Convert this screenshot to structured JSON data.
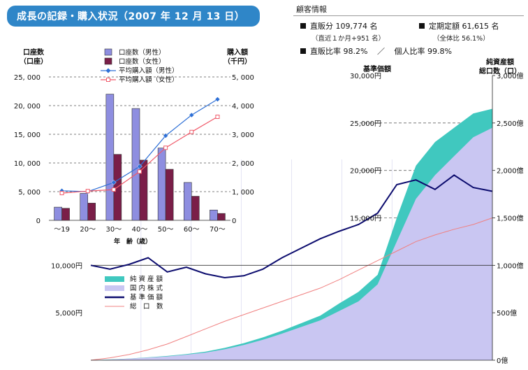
{
  "title": "成長の記録・購入状況（2007 年 12 月 13 日）",
  "customer_info": {
    "heading": "顧客情報",
    "direct_sales": "直販分 109,774 名",
    "direct_sales_sub": "（直近１か月+951 名）",
    "fixed_savings": "定期定額 61,615 名",
    "fixed_savings_sub": "（全体比 56.1%）",
    "direct_ratio": "直販比率 98.2%",
    "separator": "／",
    "individual_ratio": "個人比率 99.8%"
  },
  "colors": {
    "title_bg": "#2f86c8",
    "bar_male": "#8e8ee0",
    "bar_female": "#7a1e48",
    "line_male": "#2d6fd6",
    "line_female": "#f05a6a",
    "net_assets": "#40c8bf",
    "domestic_stocks": "#c9c6f2",
    "nav_line": "#0c0c6e",
    "accounts_line": "#f08080"
  },
  "chart_data": [
    {
      "type": "bar",
      "categories": [
        "～19",
        "20～",
        "30～",
        "40～",
        "50～",
        "60～",
        "70～"
      ],
      "xlabel": "年　齢（歳）",
      "ylabel_left": "口座数\n（口座）",
      "ylabel_right": "購入額\n（千円）",
      "ylim_left": [
        0,
        25000
      ],
      "ylim_right": [
        0,
        5000
      ],
      "yticks_left": [
        "0",
        "5, 000",
        "10, 000",
        "15, 000",
        "20, 000",
        "25, 000"
      ],
      "yticks_right": [
        "0",
        "1, 000",
        "2, 000",
        "3, 000",
        "4, 000",
        "5, 000"
      ],
      "gridlines": true,
      "legend_position": "top",
      "series": [
        {
          "name": "口座数（男性）",
          "kind": "bar",
          "axis": "left",
          "values": [
            2300,
            4700,
            22000,
            19500,
            12600,
            6600,
            1800
          ]
        },
        {
          "name": "口座数（女性）",
          "kind": "bar",
          "axis": "left",
          "values": [
            2100,
            3000,
            11500,
            10500,
            8900,
            4200,
            1200
          ]
        },
        {
          "name": "平均購入額（男性）",
          "kind": "line",
          "axis": "right",
          "values": [
            1030,
            1000,
            1320,
            1880,
            2950,
            3670,
            4220
          ]
        },
        {
          "name": "平均購入額（女性）",
          "kind": "line",
          "axis": "right",
          "values": [
            950,
            1020,
            1070,
            1700,
            2530,
            3080,
            3610
          ]
        }
      ]
    },
    {
      "type": "area",
      "ylabel_left": "基準価額",
      "ylabel_right": "純資産額\n総口数（口）",
      "ylim_left": [
        0,
        30000
      ],
      "ylim_right": [
        0,
        3000
      ],
      "yticks_left": [
        "5,000円",
        "10,000円",
        "15,000円",
        "20,000円",
        "25,000円",
        "30,000円"
      ],
      "yticks_right": [
        "0億",
        "500億",
        "1,000億",
        "1,500億",
        "2,000億",
        "2,500億",
        "3,000億"
      ],
      "reference_line": 10000,
      "legend_position": "bottom-left",
      "legend": [
        "純 資 産 額",
        "国 内 株 式",
        "基 準 価 額",
        "総　口　数"
      ],
      "series": [
        {
          "name": "純 資 産 額",
          "axis": "right",
          "values": [
            0,
            8,
            18,
            30,
            45,
            65,
            90,
            130,
            180,
            240,
            310,
            390,
            470,
            600,
            720,
            900,
            1500,
            2050,
            2300,
            2450,
            2600,
            2650
          ]
        },
        {
          "name": "国 内 株 式",
          "axis": "right",
          "values": [
            0,
            7,
            16,
            27,
            40,
            58,
            80,
            115,
            160,
            215,
            280,
            350,
            420,
            520,
            620,
            800,
            1250,
            1700,
            1950,
            2150,
            2350,
            2450
          ]
        },
        {
          "name": "基 準 価 額",
          "axis": "left",
          "values": [
            10000,
            9600,
            10100,
            10800,
            9300,
            9800,
            9100,
            8700,
            8900,
            9600,
            10800,
            11800,
            12800,
            13600,
            14300,
            15500,
            18500,
            19000,
            18000,
            19500,
            18200,
            17800
          ]
        },
        {
          "name": "総　口　数",
          "axis": "right",
          "values": [
            0,
            25,
            60,
            110,
            170,
            250,
            330,
            410,
            480,
            550,
            620,
            690,
            760,
            850,
            950,
            1050,
            1150,
            1250,
            1320,
            1380,
            1430,
            1500
          ]
        }
      ]
    }
  ]
}
